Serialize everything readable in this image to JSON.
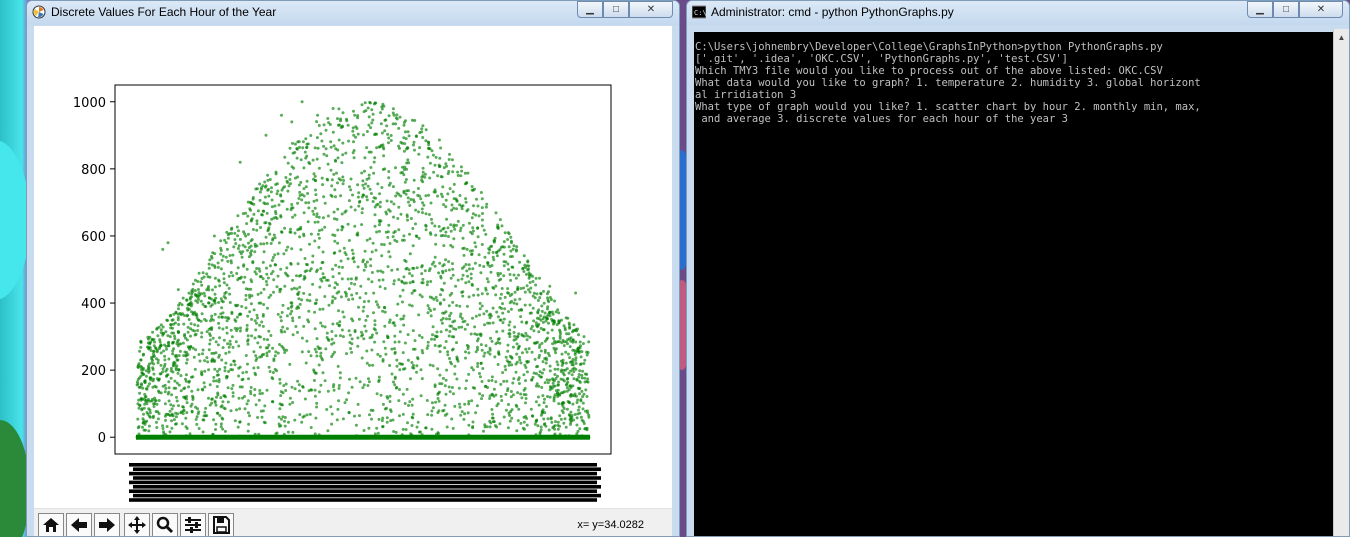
{
  "plot_window": {
    "title": "Discrete Values For Each Hour of the Year",
    "controls": {
      "minimize": "▁",
      "maximize": "□",
      "close": "✕"
    },
    "status_readout": "x= y=34.0282"
  },
  "toolbar": {
    "buttons": [
      "home-icon",
      "back-arrow-icon",
      "forward-arrow-icon",
      "pan-icon",
      "zoom-icon",
      "subplots-config-icon",
      "save-icon"
    ]
  },
  "chart_data": {
    "type": "scatter",
    "title": "",
    "xlabel": "",
    "ylabel": "",
    "ylim": [
      -50,
      1050
    ],
    "yticks": [
      0,
      200,
      400,
      600,
      800,
      1000
    ],
    "ytick_labels": [
      "0",
      "200",
      "400",
      "600",
      "800",
      "1000"
    ],
    "x_range_hours": [
      0,
      8760
    ],
    "point_color": "#008000",
    "grid": false,
    "x_tick_labels_overlapping": true,
    "series": [
      {
        "points_sample": [
          [
            500,
            560
          ],
          [
            600,
            580
          ],
          [
            800,
            440
          ],
          [
            1000,
            150
          ],
          [
            1200,
            420
          ],
          [
            1500,
            600
          ],
          [
            2000,
            820
          ],
          [
            2200,
            700
          ],
          [
            2500,
            900
          ],
          [
            2800,
            960
          ],
          [
            3000,
            940
          ],
          [
            3200,
            1000
          ],
          [
            3500,
            960
          ],
          [
            3800,
            980
          ],
          [
            4200,
            900
          ],
          [
            4500,
            850
          ],
          [
            4800,
            800
          ],
          [
            5200,
            760
          ],
          [
            5600,
            720
          ],
          [
            6000,
            650
          ],
          [
            6400,
            560
          ],
          [
            6800,
            520
          ],
          [
            7200,
            500
          ],
          [
            7600,
            490
          ],
          [
            8000,
            450
          ],
          [
            8500,
            430
          ],
          [
            3000,
            400
          ],
          [
            4000,
            300
          ],
          [
            5000,
            250
          ],
          [
            6000,
            200
          ],
          [
            2000,
            150
          ],
          [
            7000,
            100
          ],
          [
            4400,
            20
          ],
          [
            0,
            0
          ],
          [
            8760,
            0
          ]
        ]
      }
    ]
  },
  "cmd_window": {
    "title": "Administrator: cmd - python  PythonGraphs.py",
    "controls": {
      "minimize": "▁",
      "maximize": "□",
      "close": "✕"
    },
    "lines": [
      "C:\\Users\\johnembry\\Developer\\College\\GraphsInPython>python PythonGraphs.py",
      "['.git', '.idea', 'OKC.CSV', 'PythonGraphs.py', 'test.CSV']",
      "Which TMY3 file would you like to process out of the above listed: OKC.CSV",
      "What data would you like to graph? 1. temperature 2. humidity 3. global horizont",
      "al irridiation 3",
      "What type of graph would you like? 1. scatter chart by hour 2. monthly min, max,",
      " and average 3. discrete values for each hour of the year 3"
    ]
  }
}
